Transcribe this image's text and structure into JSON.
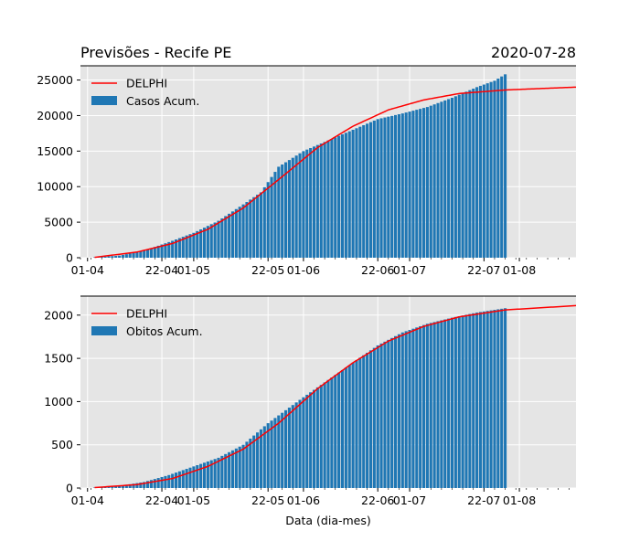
{
  "figure": {
    "title_left": "Previsões - Recife PE",
    "title_right": "2020-07-28",
    "xlabel": "Data (dia-mes)"
  },
  "colors": {
    "background": "#e5e5e5",
    "grid": "#ffffff",
    "bar": "#1f77b4",
    "line": "#ff0000"
  },
  "chart_data": [
    {
      "type": "bar",
      "x_type": "date",
      "bar_start": "2020-04-03",
      "bar_end": "2020-07-28",
      "line_start": "2020-04-03",
      "line_end": "2020-08-17",
      "xlim": [
        "2020-03-30",
        "2020-08-17"
      ],
      "ylim": [
        0,
        27000
      ],
      "yticks": [
        0,
        5000,
        10000,
        15000,
        20000,
        25000
      ],
      "xticks": [
        {
          "date": "2020-04-01",
          "label": "01-04"
        },
        {
          "date": "2020-04-22",
          "label": "22-04"
        },
        {
          "date": "2020-05-01",
          "label": "01-05"
        },
        {
          "date": "2020-05-22",
          "label": "22-05"
        },
        {
          "date": "2020-06-01",
          "label": "01-06"
        },
        {
          "date": "2020-06-22",
          "label": "22-06"
        },
        {
          "date": "2020-07-01",
          "label": "01-07"
        },
        {
          "date": "2020-07-22",
          "label": "22-07"
        },
        {
          "date": "2020-08-01",
          "label": "01-08"
        }
      ],
      "legend": {
        "location": "upper left",
        "line_label": "DELPHI",
        "bar_label": "Casos Acum."
      },
      "grid": true,
      "bar_anchors": [
        [
          "2020-04-03",
          60
        ],
        [
          "2020-04-10",
          300
        ],
        [
          "2020-04-17",
          1000
        ],
        [
          "2020-04-24",
          2200
        ],
        [
          "2020-05-01",
          3500
        ],
        [
          "2020-05-08",
          5200
        ],
        [
          "2020-05-15",
          7500
        ],
        [
          "2020-05-20",
          9200
        ],
        [
          "2020-05-25",
          12800
        ],
        [
          "2020-06-01",
          15000
        ],
        [
          "2020-06-08",
          16500
        ],
        [
          "2020-06-15",
          18000
        ],
        [
          "2020-06-22",
          19500
        ],
        [
          "2020-06-29",
          20300
        ],
        [
          "2020-07-06",
          21200
        ],
        [
          "2020-07-13",
          22500
        ],
        [
          "2020-07-20",
          24000
        ],
        [
          "2020-07-25",
          24900
        ],
        [
          "2020-07-28",
          25800
        ]
      ],
      "line_anchors": [
        [
          "2020-04-03",
          50
        ],
        [
          "2020-04-15",
          800
        ],
        [
          "2020-04-25",
          2000
        ],
        [
          "2020-05-05",
          4000
        ],
        [
          "2020-05-15",
          7000
        ],
        [
          "2020-05-25",
          11000
        ],
        [
          "2020-06-05",
          15500
        ],
        [
          "2020-06-15",
          18500
        ],
        [
          "2020-06-25",
          20800
        ],
        [
          "2020-07-05",
          22200
        ],
        [
          "2020-07-15",
          23100
        ],
        [
          "2020-07-28",
          23600
        ],
        [
          "2020-08-17",
          24000
        ]
      ]
    },
    {
      "type": "bar",
      "x_type": "date",
      "bar_start": "2020-04-03",
      "bar_end": "2020-07-28",
      "line_start": "2020-04-03",
      "line_end": "2020-08-17",
      "xlim": [
        "2020-03-30",
        "2020-08-17"
      ],
      "ylim": [
        0,
        2220
      ],
      "yticks": [
        0,
        500,
        1000,
        1500,
        2000
      ],
      "xticks": [
        {
          "date": "2020-04-01",
          "label": "01-04"
        },
        {
          "date": "2020-04-22",
          "label": "22-04"
        },
        {
          "date": "2020-05-01",
          "label": "01-05"
        },
        {
          "date": "2020-05-22",
          "label": "22-05"
        },
        {
          "date": "2020-06-01",
          "label": "01-06"
        },
        {
          "date": "2020-06-22",
          "label": "22-06"
        },
        {
          "date": "2020-07-01",
          "label": "01-07"
        },
        {
          "date": "2020-07-22",
          "label": "22-07"
        },
        {
          "date": "2020-08-01",
          "label": "01-08"
        }
      ],
      "legend": {
        "location": "upper left",
        "line_label": "DELPHI",
        "bar_label": "Obitos Acum."
      },
      "grid": true,
      "bar_anchors": [
        [
          "2020-04-03",
          5
        ],
        [
          "2020-04-10",
          25
        ],
        [
          "2020-04-17",
          70
        ],
        [
          "2020-04-24",
          150
        ],
        [
          "2020-05-01",
          250
        ],
        [
          "2020-05-08",
          350
        ],
        [
          "2020-05-15",
          500
        ],
        [
          "2020-05-22",
          750
        ],
        [
          "2020-06-01",
          1050
        ],
        [
          "2020-06-08",
          1250
        ],
        [
          "2020-06-15",
          1450
        ],
        [
          "2020-06-22",
          1650
        ],
        [
          "2020-06-29",
          1800
        ],
        [
          "2020-07-06",
          1900
        ],
        [
          "2020-07-13",
          1970
        ],
        [
          "2020-07-20",
          2030
        ],
        [
          "2020-07-28",
          2080
        ]
      ],
      "line_anchors": [
        [
          "2020-04-03",
          5
        ],
        [
          "2020-04-15",
          40
        ],
        [
          "2020-04-25",
          110
        ],
        [
          "2020-05-05",
          250
        ],
        [
          "2020-05-15",
          450
        ],
        [
          "2020-05-25",
          750
        ],
        [
          "2020-06-05",
          1150
        ],
        [
          "2020-06-15",
          1450
        ],
        [
          "2020-06-25",
          1700
        ],
        [
          "2020-07-05",
          1870
        ],
        [
          "2020-07-15",
          1980
        ],
        [
          "2020-07-28",
          2060
        ],
        [
          "2020-08-17",
          2110
        ]
      ]
    }
  ]
}
